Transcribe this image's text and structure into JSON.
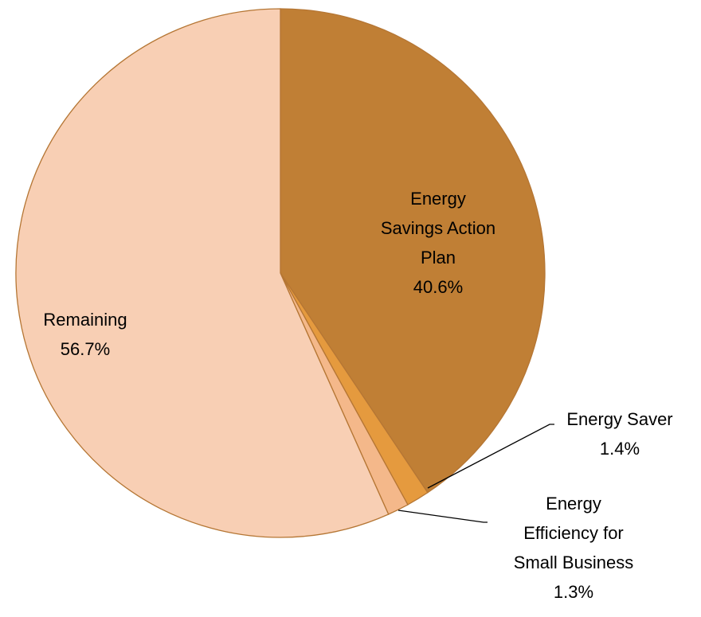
{
  "chart_data": {
    "type": "pie",
    "categories": [
      "Energy Savings Action Plan",
      "Energy Saver",
      "Energy Efficiency for Small Business",
      "Remaining"
    ],
    "values": [
      40.6,
      1.4,
      1.3,
      56.7
    ],
    "value_labels": [
      "40.6%",
      "1.4%",
      "1.3%",
      "56.7%"
    ],
    "colors": [
      "#c07f35",
      "#e59a3e",
      "#f4b88a",
      "#f8cfb4"
    ]
  }
}
